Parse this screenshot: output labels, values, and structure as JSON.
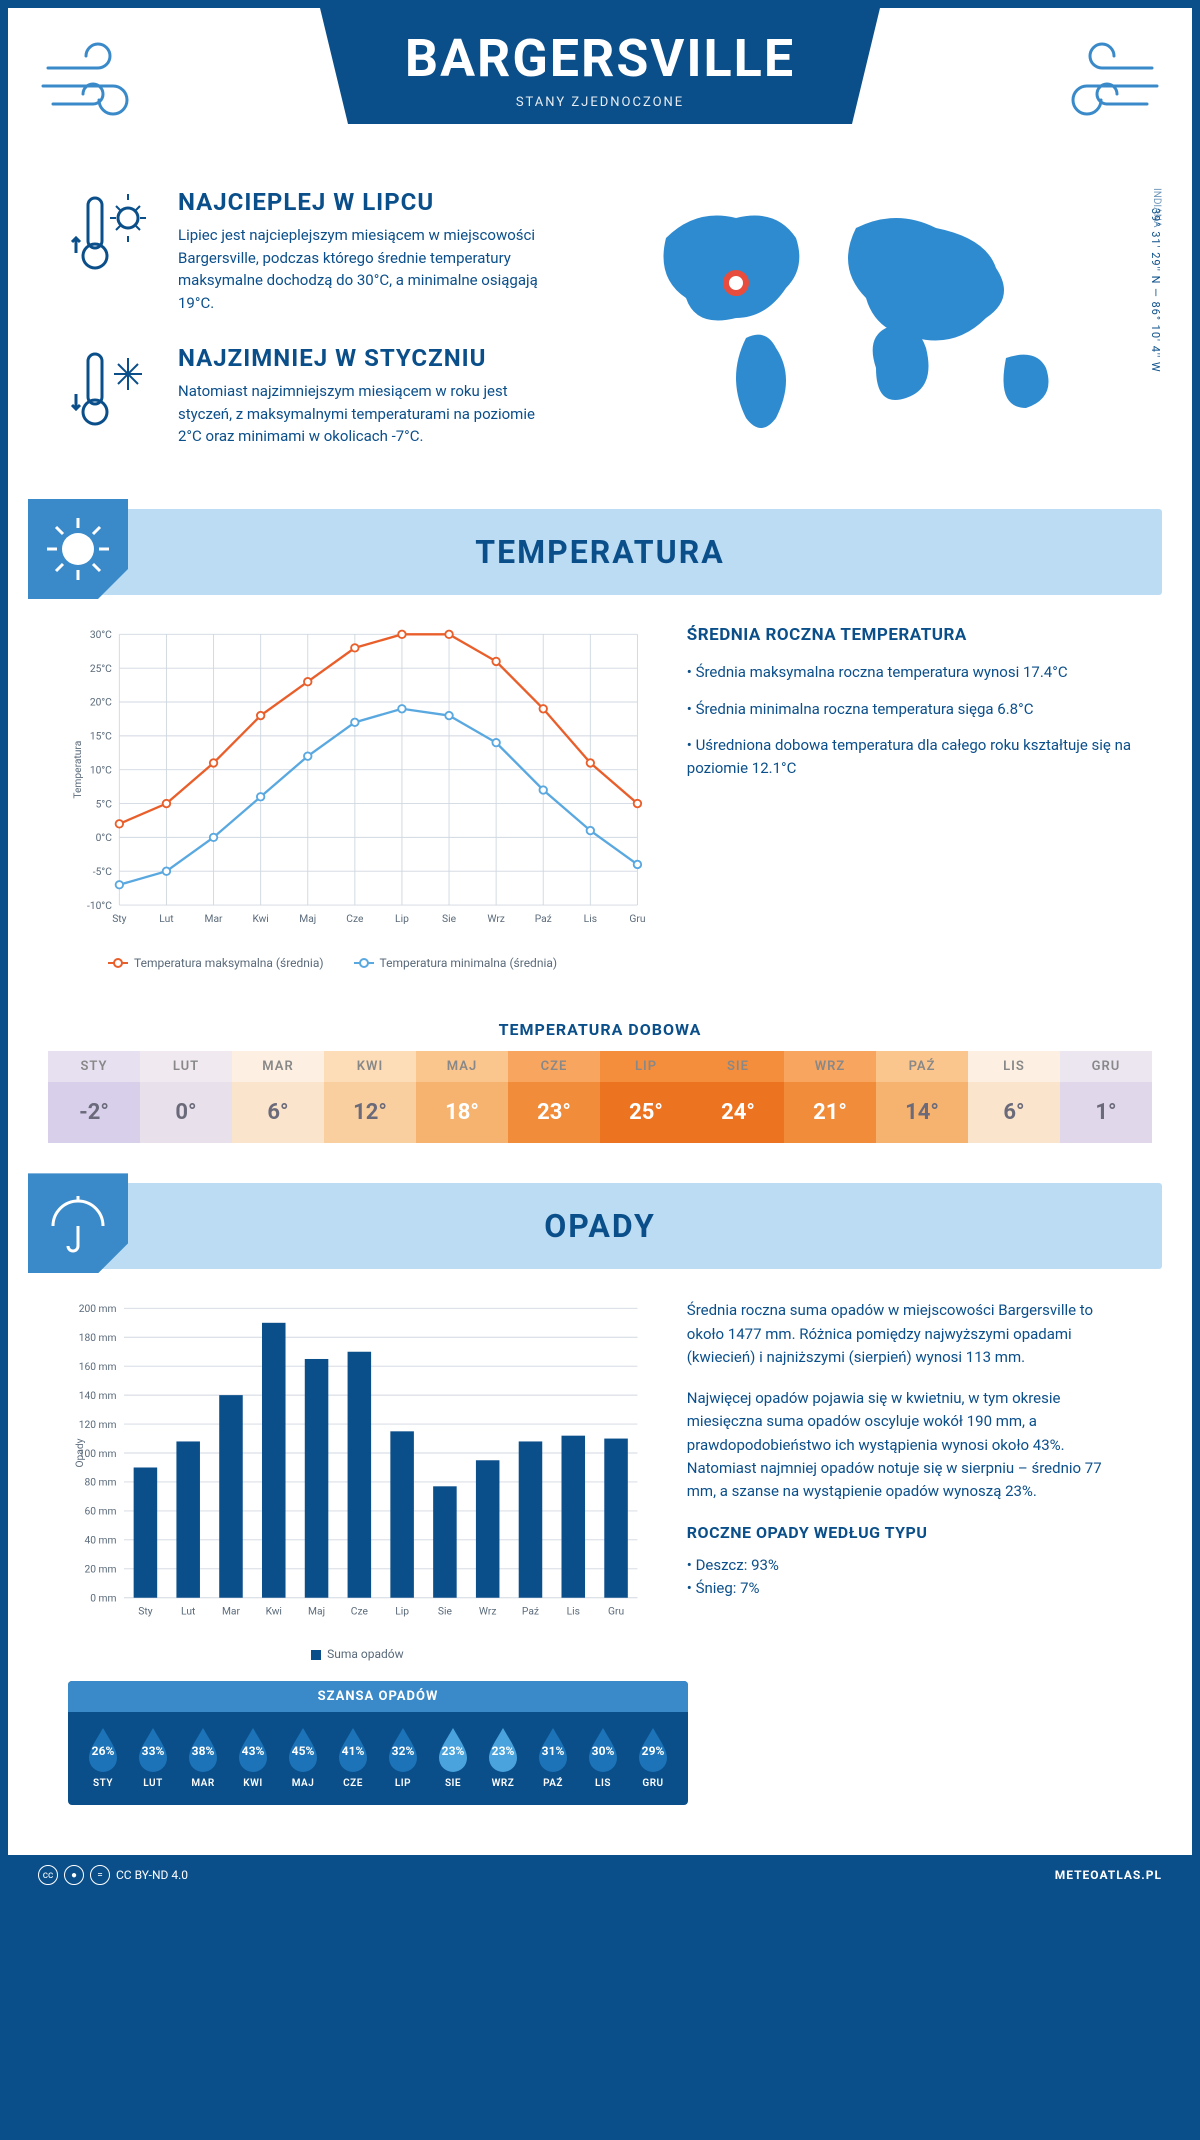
{
  "header": {
    "city": "BARGERSVILLE",
    "country": "STANY ZJEDNOCZONE",
    "region": "INDIANA",
    "coords": "39° 31' 29'' N — 86° 10' 4'' W"
  },
  "facts": {
    "warm": {
      "title": "NAJCIEPLEJ W LIPCU",
      "text": "Lipiec jest najcieplejszym miesiącem w miejscowości Bargersville, podczas którego średnie temperatury maksymalne dochodzą do 30°C, a minimalne osiągają 19°C."
    },
    "cold": {
      "title": "NAJZIMNIEJ W STYCZNIU",
      "text": "Natomiast najzimniejszym miesiącem w roku jest styczeń, z maksymalnymi temperaturami na poziomie 2°C oraz minimami w okolicach -7°C."
    }
  },
  "temperature_section": {
    "title": "TEMPERATURA",
    "info_title": "ŚREDNIA ROCZNA TEMPERATURA",
    "bullets": [
      "• Średnia maksymalna roczna temperatura wynosi 17.4°C",
      "• Średnia minimalna roczna temperatura sięga 6.8°C",
      "• Uśredniona dobowa temperatura dla całego roku kształtuje się na poziomie 12.1°C"
    ],
    "chart": {
      "type": "line",
      "months": [
        "Sty",
        "Lut",
        "Mar",
        "Kwi",
        "Maj",
        "Cze",
        "Lip",
        "Sie",
        "Wrz",
        "Paź",
        "Lis",
        "Gru"
      ],
      "ylabel": "Temperatura",
      "ylim": [
        -10,
        30
      ],
      "ytick_step": 5,
      "ytick_suffix": "°C",
      "grid_color": "#d0d8e0",
      "background": "#ffffff",
      "series": [
        {
          "name": "Temperatura maksymalna (średnia)",
          "color": "#e95f2b",
          "values": [
            2,
            5,
            11,
            18,
            23,
            28,
            30,
            30,
            26,
            19,
            11,
            5
          ]
        },
        {
          "name": "Temperatura minimalna (średnia)",
          "color": "#5aa8e0",
          "values": [
            -7,
            -5,
            0,
            6,
            12,
            17,
            19,
            18,
            14,
            7,
            1,
            -4
          ]
        }
      ]
    },
    "daily_title": "TEMPERATURA DOBOWA",
    "daily": {
      "months": [
        "STY",
        "LUT",
        "MAR",
        "KWI",
        "MAJ",
        "CZE",
        "LIP",
        "SIE",
        "WRZ",
        "PAŹ",
        "LIS",
        "GRU"
      ],
      "values": [
        "-2°",
        "0°",
        "6°",
        "12°",
        "18°",
        "23°",
        "25°",
        "24°",
        "21°",
        "14°",
        "6°",
        "1°"
      ],
      "header_colors": [
        "#e6e0f0",
        "#f0eaf0",
        "#fdf0e2",
        "#fddcb8",
        "#fbc68e",
        "#f8a560",
        "#f58e3c",
        "#f58e3c",
        "#f8a560",
        "#fbc68e",
        "#fdf0e2",
        "#ece6f0"
      ],
      "value_colors": [
        "#d8d0ea",
        "#e8e0ea",
        "#fae4cc",
        "#f9cfa0",
        "#f6b370",
        "#f08c3a",
        "#ec7320",
        "#ec7320",
        "#f08c3a",
        "#f6b370",
        "#fae4cc",
        "#e0d8ea"
      ],
      "text_color_light": "#ffffff",
      "text_color_dark": "#6a6a7a"
    }
  },
  "precip_section": {
    "title": "OPADY",
    "chart": {
      "type": "bar",
      "months": [
        "Sty",
        "Lut",
        "Mar",
        "Kwi",
        "Maj",
        "Cze",
        "Lip",
        "Sie",
        "Wrz",
        "Paź",
        "Lis",
        "Gru"
      ],
      "ylabel": "Opady",
      "ylim": [
        0,
        200
      ],
      "ytick_step": 20,
      "ytick_suffix": " mm",
      "bar_color": "#0b4f8a",
      "grid_color": "#d0d8e0",
      "values": [
        90,
        108,
        140,
        190,
        165,
        170,
        115,
        77,
        95,
        108,
        112,
        110
      ],
      "legend": "Suma opadów"
    },
    "text1": "Średnia roczna suma opadów w miejscowości Bargersville to około 1477 mm. Różnica pomiędzy najwyższymi opadami (kwiecień) i najniższymi (sierpień) wynosi 113 mm.",
    "text2": "Najwięcej opadów pojawia się w kwietniu, w tym okresie miesięczna suma opadów oscyluje wokół 190 mm, a prawdopodobieństwo ich wystąpienia wynosi około 43%. Natomiast najmniej opadów notuje się w sierpniu – średnio 77 mm, a szanse na wystąpienie opadów wynoszą 23%.",
    "by_type_title": "ROCZNE OPADY WEDŁUG TYPU",
    "by_type": [
      "• Deszcz: 93%",
      "• Śnieg: 7%"
    ],
    "chance": {
      "title": "SZANSA OPADÓW",
      "months": [
        "STY",
        "LUT",
        "MAR",
        "KWI",
        "MAJ",
        "CZE",
        "LIP",
        "SIE",
        "WRZ",
        "PAŹ",
        "LIS",
        "GRU"
      ],
      "values": [
        "26%",
        "33%",
        "38%",
        "43%",
        "45%",
        "41%",
        "32%",
        "23%",
        "23%",
        "31%",
        "30%",
        "29%"
      ],
      "drop_colors": [
        "#1c73b8",
        "#1c73b8",
        "#1c73b8",
        "#1c73b8",
        "#1c73b8",
        "#1c73b8",
        "#1c73b8",
        "#4aa3dd",
        "#4aa3dd",
        "#1c73b8",
        "#1c73b8",
        "#1c73b8"
      ]
    }
  },
  "footer": {
    "license": "CC BY-ND 4.0",
    "brand": "METEOATLAS.PL"
  }
}
